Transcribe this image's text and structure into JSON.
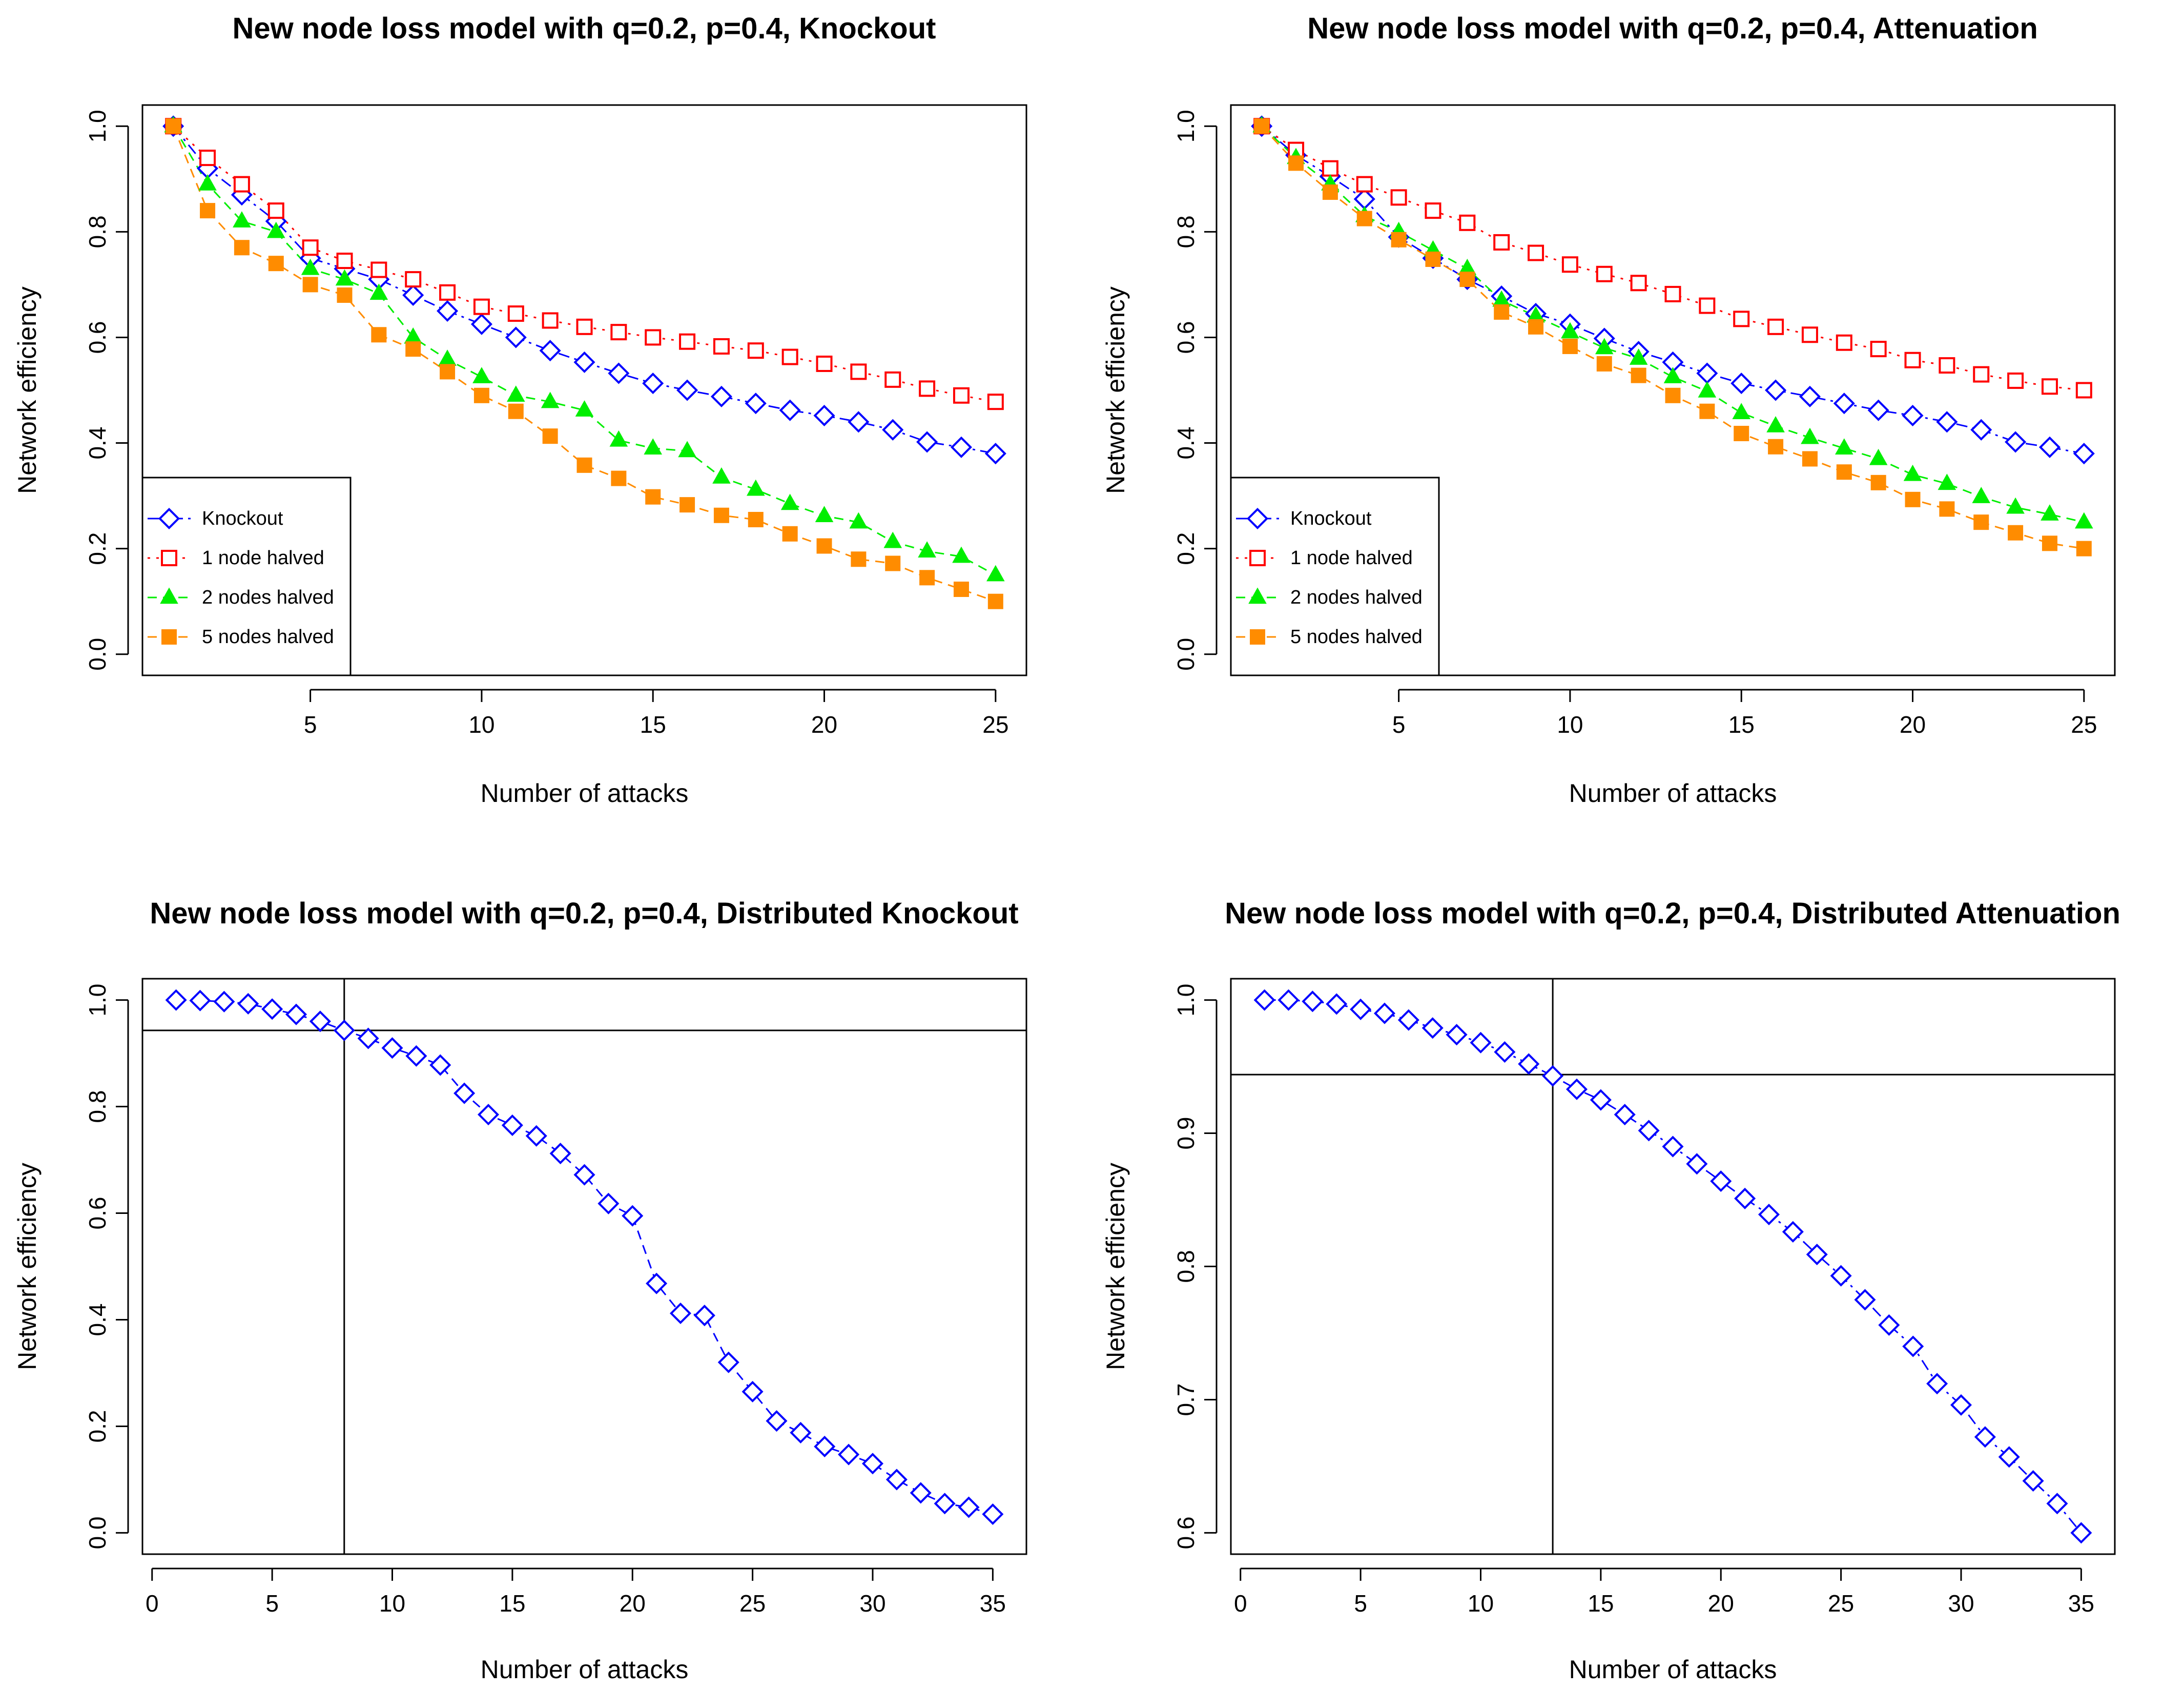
{
  "chart_data": [
    {
      "id": "knockout",
      "type": "line",
      "title": "New node loss model with q=0.2, p=0.4, Knockout",
      "xlabel": "Number of attacks",
      "ylabel": "Network efficiency",
      "xlim": [
        0.1,
        25.9
      ],
      "ylim": [
        -0.04,
        1.04
      ],
      "xticks": [
        5,
        10,
        15,
        20,
        25
      ],
      "yticks": [
        0.0,
        0.2,
        0.4,
        0.6,
        0.8,
        1.0
      ],
      "ytick_labels": [
        "0.0",
        "0.2",
        "0.4",
        "0.6",
        "0.8",
        "1.0"
      ],
      "x": [
        1,
        2,
        3,
        4,
        5,
        6,
        7,
        8,
        9,
        10,
        11,
        12,
        13,
        14,
        15,
        16,
        17,
        18,
        19,
        20,
        21,
        22,
        23,
        24,
        25
      ],
      "legend": {
        "position": "bottom-left"
      },
      "series": [
        {
          "name": "Knockout",
          "color": "#0000ff",
          "marker": "diamond-open",
          "dash": "dashdot",
          "values": [
            1.0,
            0.92,
            0.87,
            0.82,
            0.75,
            0.73,
            0.71,
            0.68,
            0.65,
            0.625,
            0.6,
            0.575,
            0.553,
            0.532,
            0.513,
            0.5,
            0.488,
            0.475,
            0.462,
            0.452,
            0.44,
            0.425,
            0.402,
            0.392,
            0.38
          ]
        },
        {
          "name": "1 node halved",
          "color": "#ff0000",
          "marker": "square-open",
          "dash": "dotted",
          "values": [
            1.0,
            0.94,
            0.89,
            0.84,
            0.77,
            0.745,
            0.728,
            0.71,
            0.685,
            0.658,
            0.645,
            0.632,
            0.62,
            0.61,
            0.6,
            0.592,
            0.583,
            0.575,
            0.563,
            0.55,
            0.535,
            0.52,
            0.503,
            0.49,
            0.478
          ]
        },
        {
          "name": "2 nodes halved",
          "color": "#00ee00",
          "marker": "triangle-filled",
          "dash": "dashed",
          "values": [
            1.0,
            0.89,
            0.82,
            0.8,
            0.73,
            0.71,
            0.683,
            0.6,
            0.558,
            0.525,
            0.49,
            0.478,
            0.462,
            0.405,
            0.39,
            0.385,
            0.335,
            0.312,
            0.285,
            0.262,
            0.25,
            0.213,
            0.195,
            0.185,
            0.15
          ]
        },
        {
          "name": "5 nodes halved",
          "color": "#ff8c00",
          "marker": "square-filled",
          "dash": "dashed",
          "values": [
            1.0,
            0.84,
            0.77,
            0.74,
            0.7,
            0.68,
            0.605,
            0.578,
            0.535,
            0.49,
            0.46,
            0.413,
            0.358,
            0.333,
            0.298,
            0.283,
            0.263,
            0.255,
            0.228,
            0.205,
            0.18,
            0.172,
            0.145,
            0.123,
            0.1
          ]
        }
      ]
    },
    {
      "id": "attenuation",
      "type": "line",
      "title": "New node loss model with q=0.2, p=0.4, Attenuation",
      "xlabel": "Number of attacks",
      "ylabel": "Network efficiency",
      "xlim": [
        0.1,
        25.9
      ],
      "ylim": [
        -0.04,
        1.04
      ],
      "xticks": [
        5,
        10,
        15,
        20,
        25
      ],
      "yticks": [
        0.0,
        0.2,
        0.4,
        0.6,
        0.8,
        1.0
      ],
      "ytick_labels": [
        "0.0",
        "0.2",
        "0.4",
        "0.6",
        "0.8",
        "1.0"
      ],
      "x": [
        1,
        2,
        3,
        4,
        5,
        6,
        7,
        8,
        9,
        10,
        11,
        12,
        13,
        14,
        15,
        16,
        17,
        18,
        19,
        20,
        21,
        22,
        23,
        24,
        25
      ],
      "legend": {
        "position": "bottom-left"
      },
      "series": [
        {
          "name": "Knockout",
          "color": "#0000ff",
          "marker": "diamond-open",
          "dash": "dashdot",
          "values": [
            1.0,
            0.945,
            0.905,
            0.862,
            0.79,
            0.75,
            0.71,
            0.678,
            0.645,
            0.625,
            0.598,
            0.573,
            0.553,
            0.532,
            0.513,
            0.5,
            0.488,
            0.475,
            0.462,
            0.452,
            0.44,
            0.425,
            0.402,
            0.392,
            0.38
          ]
        },
        {
          "name": "1 node halved",
          "color": "#ff0000",
          "marker": "square-open",
          "dash": "dotted",
          "values": [
            1.0,
            0.955,
            0.92,
            0.89,
            0.865,
            0.84,
            0.817,
            0.78,
            0.76,
            0.738,
            0.72,
            0.703,
            0.682,
            0.66,
            0.635,
            0.62,
            0.605,
            0.59,
            0.578,
            0.557,
            0.547,
            0.53,
            0.518,
            0.507,
            0.5
          ]
        },
        {
          "name": "2 nodes halved",
          "color": "#00ee00",
          "marker": "triangle-filled",
          "dash": "dashed",
          "values": [
            1.0,
            0.94,
            0.89,
            0.83,
            0.8,
            0.765,
            0.73,
            0.67,
            0.64,
            0.61,
            0.58,
            0.56,
            0.525,
            0.498,
            0.457,
            0.432,
            0.41,
            0.39,
            0.37,
            0.34,
            0.323,
            0.298,
            0.278,
            0.265,
            0.25
          ]
        },
        {
          "name": "5 nodes halved",
          "color": "#ff8c00",
          "marker": "square-filled",
          "dash": "dashed",
          "values": [
            1.0,
            0.93,
            0.875,
            0.825,
            0.785,
            0.748,
            0.71,
            0.648,
            0.62,
            0.583,
            0.55,
            0.528,
            0.49,
            0.46,
            0.418,
            0.393,
            0.37,
            0.345,
            0.325,
            0.293,
            0.275,
            0.25,
            0.23,
            0.21,
            0.2
          ]
        }
      ]
    },
    {
      "id": "distributed-knockout",
      "type": "scatter",
      "title": "New node loss model with q=0.2, p=0.4, Distributed Knockout",
      "xlabel": "Number of attacks",
      "ylabel": "Network efficiency",
      "xlim": [
        -0.4,
        36.4
      ],
      "ylim": [
        -0.04,
        1.04
      ],
      "xticks": [
        0,
        5,
        10,
        15,
        20,
        25,
        30,
        35
      ],
      "yticks": [
        0.0,
        0.2,
        0.4,
        0.6,
        0.8,
        1.0
      ],
      "ytick_labels": [
        "0.0",
        "0.2",
        "0.4",
        "0.6",
        "0.8",
        "1.0"
      ],
      "reference_lines": {
        "v": 8,
        "h": 0.943
      },
      "x": [
        1,
        2,
        3,
        4,
        5,
        6,
        7,
        8,
        9,
        10,
        11,
        12,
        13,
        14,
        15,
        16,
        17,
        18,
        19,
        20,
        21,
        22,
        23,
        24,
        25,
        26,
        27,
        28,
        29,
        30,
        31,
        32,
        33,
        34,
        35
      ],
      "series": [
        {
          "name": "Distributed Knockout",
          "color": "#0000ff",
          "marker": "diamond-open",
          "dash": "dashed",
          "values": [
            1.0,
            0.999,
            0.997,
            0.993,
            0.983,
            0.973,
            0.96,
            0.943,
            0.928,
            0.91,
            0.895,
            0.878,
            0.825,
            0.785,
            0.765,
            0.745,
            0.712,
            0.672,
            0.618,
            0.595,
            0.468,
            0.412,
            0.408,
            0.32,
            0.265,
            0.21,
            0.188,
            0.162,
            0.147,
            0.13,
            0.1,
            0.075,
            0.055,
            0.048,
            0.035
          ]
        }
      ]
    },
    {
      "id": "distributed-attenuation",
      "type": "scatter",
      "title": "New node loss model with q=0.2, p=0.4, Distributed Attenuation",
      "xlabel": "Number of attacks",
      "ylabel": "Network efficiency",
      "xlim": [
        -0.4,
        36.4
      ],
      "ylim": [
        0.584,
        1.016
      ],
      "xticks": [
        0,
        5,
        10,
        15,
        20,
        25,
        30,
        35
      ],
      "yticks": [
        0.6,
        0.7,
        0.8,
        0.9,
        1.0
      ],
      "ytick_labels": [
        "0.6",
        "0.7",
        "0.8",
        "0.9",
        "1.0"
      ],
      "reference_lines": {
        "v": 13,
        "h": 0.944
      },
      "x": [
        1,
        2,
        3,
        4,
        5,
        6,
        7,
        8,
        9,
        10,
        11,
        12,
        13,
        14,
        15,
        16,
        17,
        18,
        19,
        20,
        21,
        22,
        23,
        24,
        25,
        26,
        27,
        28,
        29,
        30,
        31,
        32,
        33,
        34,
        35
      ],
      "series": [
        {
          "name": "Distributed Attenuation",
          "color": "#0000ff",
          "marker": "diamond-open",
          "dash": "dashdot",
          "values": [
            1.0,
            1.0,
            0.999,
            0.997,
            0.993,
            0.99,
            0.985,
            0.979,
            0.974,
            0.968,
            0.961,
            0.952,
            0.943,
            0.933,
            0.925,
            0.914,
            0.902,
            0.89,
            0.877,
            0.864,
            0.851,
            0.839,
            0.826,
            0.809,
            0.793,
            0.775,
            0.756,
            0.74,
            0.712,
            0.696,
            0.672,
            0.657,
            0.639,
            0.622,
            0.6
          ]
        }
      ]
    }
  ]
}
